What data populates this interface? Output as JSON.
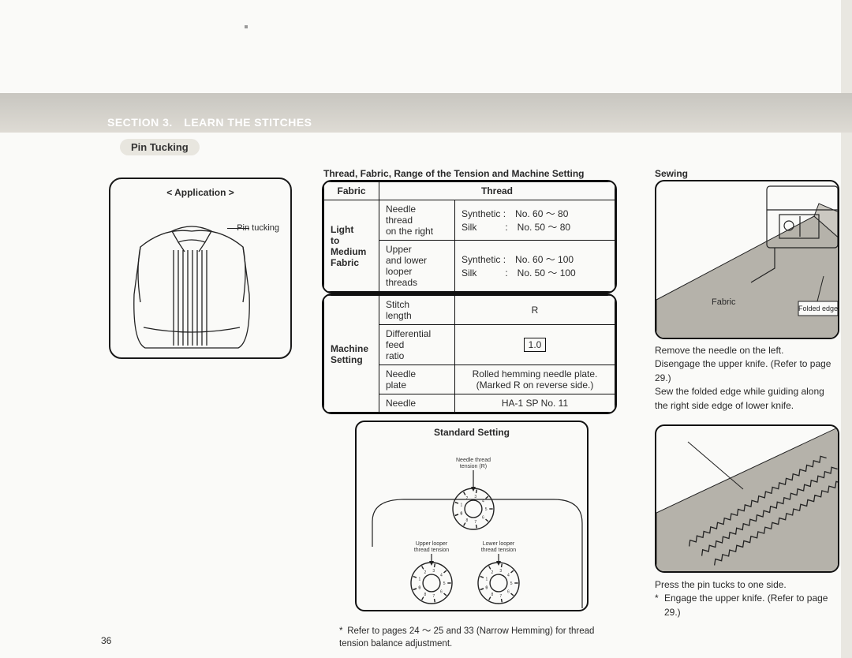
{
  "section_title": "SECTION 3. LEARN THE STITCHES",
  "sub_heading": "Pin Tucking",
  "page_number": "36",
  "application": {
    "title": "< Application >",
    "label": "Pin tucking"
  },
  "thread_table_title": "Thread, Fabric, Range of the Tension and Machine Setting",
  "table1": {
    "head_fabric": "Fabric",
    "head_thread": "Thread",
    "fabric_range": "Light\nto\nMedium\nFabric",
    "row1_sub": "Needle\nthread\non the right",
    "row1_thread": "Synthetic : No. 60 ～ 80\nSilk   : No. 50 ～ 80",
    "row2_sub": "Upper\nand lower\nlooper\nthreads",
    "row2_thread": "Synthetic : No. 60 ～ 100\nSilk   : No. 50 ～ 100"
  },
  "table2": {
    "head": "Machine\nSetting",
    "r1a": "Stitch\nlength",
    "r1b": "R",
    "r2a": "Differential\nfeed\nratio",
    "r2b": "1.0",
    "r3a": "Needle\nplate",
    "r3b": "Rolled hemming needle plate.\n(Marked R on reverse side.)",
    "r4a": "Needle",
    "r4b": "HA-1 SP No. 11"
  },
  "standard": {
    "title": "Standard Setting",
    "needle_thread_label": "Needle thread\ntension (R)",
    "upper_looper_label": "Upper looper\nthread tension",
    "lower_looper_label": "Lower looper\nthread tension",
    "dial_font_size": 5,
    "label_font_size": 7
  },
  "footnote": "* Refer to pages 24 ～ 25 and 33 (Narrow Hemming) for thread tension balance adjustment.",
  "sewing": {
    "heading": "Sewing",
    "fig1_label_fabric": "Fabric",
    "fig1_label_edge": "Folded edge",
    "text1": "Remove the needle on the left.\nDisengage the upper knife. (Refer to page 29.)\nSew the folded edge while guiding along the right side edge of lower knife.",
    "text2_line1": "Press the pin tucks to one side.",
    "text2_note": "Engage the upper knife. (Refer to page 29.)"
  },
  "colors": {
    "ink": "#1a1a1a",
    "paper": "#fafaf8",
    "band": "#d4d1ca",
    "fabric_fill": "#b5b2aa",
    "fabric_fill_dark": "#8f8c84"
  }
}
